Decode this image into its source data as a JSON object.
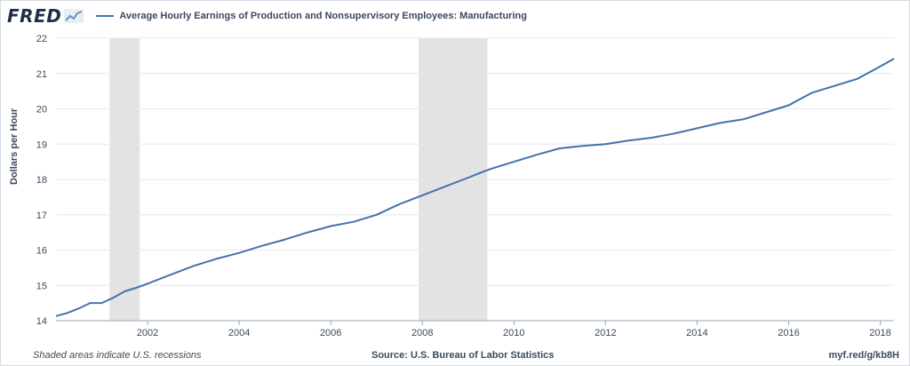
{
  "header": {
    "logo_text": "FRED",
    "logo_icon": "chart-line-icon",
    "legend_text": "Average Hourly Earnings of Production and Nonsupervisory Employees: Manufacturing"
  },
  "footer": {
    "note": "Shaded areas indicate U.S. recessions",
    "source": "Source: U.S. Bureau of Labor Statistics",
    "link": "myf.red/g/kb8H"
  },
  "colors": {
    "line": "#4572a7",
    "recession": "#e3e3e3",
    "grid": "#e6e9ee",
    "axis": "#9aa5b5"
  },
  "chart_data": {
    "type": "line",
    "title": "",
    "xlabel": "",
    "ylabel": "Dollars per Hour",
    "xlim": [
      2000.0,
      2018.3
    ],
    "ylim": [
      14,
      22
    ],
    "grid": true,
    "legend": "top-left",
    "x_ticks": [
      2002,
      2004,
      2006,
      2008,
      2010,
      2012,
      2014,
      2016,
      2018
    ],
    "y_ticks": [
      14,
      15,
      16,
      17,
      18,
      19,
      20,
      21,
      22
    ],
    "recessions": [
      [
        2001.17,
        2001.83
      ],
      [
        2007.92,
        2009.42
      ]
    ],
    "series": [
      {
        "name": "Average Hourly Earnings of Production and Nonsupervisory Employees: Manufacturing",
        "x": [
          2000.0,
          2000.25,
          2000.5,
          2000.75,
          2001.0,
          2001.25,
          2001.5,
          2001.75,
          2002.0,
          2002.5,
          2003.0,
          2003.5,
          2004.0,
          2004.5,
          2005.0,
          2005.5,
          2006.0,
          2006.5,
          2007.0,
          2007.5,
          2008.0,
          2008.5,
          2009.0,
          2009.25,
          2009.5,
          2010.0,
          2010.5,
          2011.0,
          2011.5,
          2012.0,
          2012.5,
          2013.0,
          2013.5,
          2014.0,
          2014.5,
          2015.0,
          2015.5,
          2016.0,
          2016.5,
          2017.0,
          2017.5,
          2018.0,
          2018.3
        ],
        "y": [
          14.13,
          14.22,
          14.35,
          14.5,
          14.5,
          14.65,
          14.83,
          14.93,
          15.05,
          15.3,
          15.55,
          15.75,
          15.92,
          16.12,
          16.3,
          16.5,
          16.68,
          16.8,
          17.0,
          17.3,
          17.55,
          17.8,
          18.05,
          18.18,
          18.3,
          18.5,
          18.7,
          18.88,
          18.95,
          19.0,
          19.1,
          19.18,
          19.3,
          19.45,
          19.6,
          19.7,
          19.9,
          20.1,
          20.45,
          20.65,
          20.85,
          21.2,
          21.42
        ]
      }
    ]
  }
}
